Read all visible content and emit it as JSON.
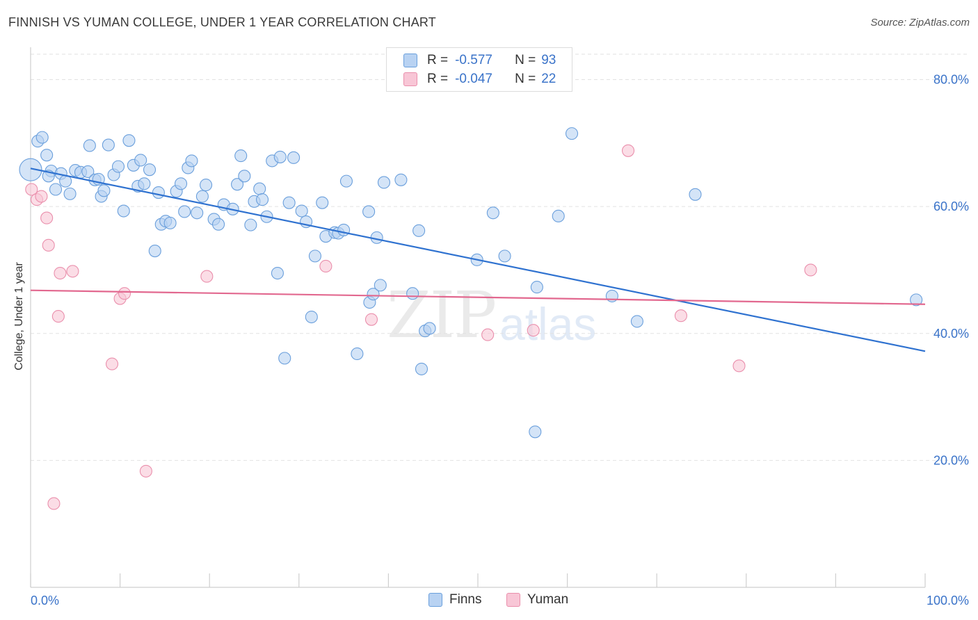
{
  "header": {
    "title": "FINNISH VS YUMAN COLLEGE, UNDER 1 YEAR CORRELATION CHART",
    "source": "Source: ZipAtlas.com"
  },
  "legend": {
    "finns": {
      "r_label": "R =",
      "r_value": "-0.577",
      "n_label": "N =",
      "n_value": "93"
    },
    "yuman": {
      "r_label": "R =",
      "r_value": "-0.047",
      "n_label": "N =",
      "n_value": "22"
    }
  },
  "bottom_legend": {
    "finns": "Finns",
    "yuman": "Yuman"
  },
  "watermark": {
    "zip": "ZIP",
    "atlas": "atlas"
  },
  "colors": {
    "finns_fill": "#b8d2f2",
    "finns_stroke": "#6a9fdc",
    "finns_line": "#2f72d0",
    "yuman_fill": "#f8c6d6",
    "yuman_stroke": "#ea8fac",
    "yuman_line": "#e2688f",
    "axis_label": "#3a73c9",
    "grid": "#e2e2e2"
  },
  "chart_data": {
    "type": "scatter",
    "title": "FINNISH VS YUMAN COLLEGE, UNDER 1 YEAR CORRELATION CHART",
    "xlabel": "",
    "ylabel": "College, Under 1 year",
    "xlim": [
      0,
      100
    ],
    "ylim": [
      0,
      84
    ],
    "x_ticks": [
      "0.0%",
      "100.0%"
    ],
    "y_ticks": [
      {
        "value": 80,
        "label": "80.0%"
      },
      {
        "value": 60,
        "label": "60.0%"
      },
      {
        "value": 40,
        "label": "40.0%"
      },
      {
        "value": 20,
        "label": "20.0%"
      }
    ],
    "grid": true,
    "legend_position": "top-center",
    "series": [
      {
        "name": "Finns",
        "r": -0.577,
        "n": 93,
        "trend": {
          "x": [
            0,
            100
          ],
          "y": [
            66.0,
            37.2
          ]
        },
        "points": [
          [
            0.0,
            65.8
          ],
          [
            0.8,
            70.3
          ],
          [
            1.3,
            70.9
          ],
          [
            1.8,
            68.1
          ],
          [
            2.3,
            65.6
          ],
          [
            2.8,
            62.7
          ],
          [
            3.4,
            65.2
          ],
          [
            3.9,
            64.0
          ],
          [
            4.4,
            62.0
          ],
          [
            5.0,
            65.7
          ],
          [
            5.6,
            65.4
          ],
          [
            6.4,
            65.5
          ],
          [
            6.6,
            69.6
          ],
          [
            7.2,
            64.2
          ],
          [
            7.6,
            64.3
          ],
          [
            7.9,
            61.6
          ],
          [
            8.2,
            62.5
          ],
          [
            8.7,
            69.7
          ],
          [
            9.3,
            65.0
          ],
          [
            9.8,
            66.3
          ],
          [
            10.4,
            59.3
          ],
          [
            11.0,
            70.4
          ],
          [
            11.5,
            66.5
          ],
          [
            12.0,
            63.2
          ],
          [
            12.3,
            67.3
          ],
          [
            12.7,
            63.6
          ],
          [
            13.3,
            65.8
          ],
          [
            13.9,
            53.0
          ],
          [
            14.3,
            62.2
          ],
          [
            14.6,
            57.2
          ],
          [
            15.1,
            57.7
          ],
          [
            15.6,
            57.4
          ],
          [
            16.3,
            62.4
          ],
          [
            16.8,
            63.6
          ],
          [
            17.2,
            59.2
          ],
          [
            17.6,
            66.1
          ],
          [
            18.0,
            67.2
          ],
          [
            18.6,
            59.0
          ],
          [
            19.2,
            61.6
          ],
          [
            19.6,
            63.4
          ],
          [
            20.5,
            58.0
          ],
          [
            21.0,
            57.2
          ],
          [
            21.6,
            60.3
          ],
          [
            22.6,
            59.6
          ],
          [
            23.1,
            63.5
          ],
          [
            23.5,
            68.0
          ],
          [
            23.9,
            64.8
          ],
          [
            24.6,
            57.1
          ],
          [
            25.0,
            60.8
          ],
          [
            25.6,
            62.8
          ],
          [
            25.9,
            61.1
          ],
          [
            26.4,
            58.4
          ],
          [
            27.0,
            67.2
          ],
          [
            27.6,
            49.5
          ],
          [
            27.9,
            67.8
          ],
          [
            28.4,
            36.1
          ],
          [
            28.9,
            60.6
          ],
          [
            29.4,
            67.7
          ],
          [
            30.3,
            59.3
          ],
          [
            30.8,
            57.6
          ],
          [
            31.4,
            42.6
          ],
          [
            31.8,
            52.2
          ],
          [
            32.6,
            60.6
          ],
          [
            33.0,
            55.3
          ],
          [
            34.0,
            55.9
          ],
          [
            34.4,
            55.8
          ],
          [
            35.0,
            56.3
          ],
          [
            35.3,
            64.0
          ],
          [
            36.5,
            36.8
          ],
          [
            37.8,
            59.2
          ],
          [
            37.9,
            44.9
          ],
          [
            38.3,
            46.2
          ],
          [
            38.7,
            55.1
          ],
          [
            39.1,
            47.6
          ],
          [
            39.5,
            63.8
          ],
          [
            41.4,
            64.2
          ],
          [
            42.7,
            46.3
          ],
          [
            43.4,
            56.2
          ],
          [
            43.7,
            34.4
          ],
          [
            44.1,
            40.4
          ],
          [
            44.6,
            40.8
          ],
          [
            49.9,
            51.6
          ],
          [
            51.7,
            59.0
          ],
          [
            53.0,
            52.2
          ],
          [
            56.4,
            24.5
          ],
          [
            56.6,
            47.3
          ],
          [
            59.0,
            58.5
          ],
          [
            60.5,
            71.5
          ],
          [
            65.0,
            45.9
          ],
          [
            67.8,
            41.9
          ],
          [
            74.3,
            61.9
          ],
          [
            99.0,
            45.3
          ],
          [
            2.0,
            64.8
          ]
        ]
      },
      {
        "name": "Yuman",
        "r": -0.047,
        "n": 22,
        "trend": {
          "x": [
            0,
            100
          ],
          "y": [
            46.8,
            44.6
          ]
        },
        "points": [
          [
            0.1,
            62.7
          ],
          [
            0.7,
            61.1
          ],
          [
            1.2,
            61.6
          ],
          [
            1.8,
            58.2
          ],
          [
            2.0,
            53.9
          ],
          [
            2.6,
            13.2
          ],
          [
            3.1,
            42.7
          ],
          [
            3.3,
            49.5
          ],
          [
            4.7,
            49.8
          ],
          [
            9.1,
            35.2
          ],
          [
            10.0,
            45.5
          ],
          [
            10.5,
            46.3
          ],
          [
            12.9,
            18.3
          ],
          [
            19.7,
            49.0
          ],
          [
            33.0,
            50.6
          ],
          [
            38.1,
            42.2
          ],
          [
            51.1,
            39.8
          ],
          [
            56.2,
            40.5
          ],
          [
            66.8,
            68.8
          ],
          [
            72.7,
            42.8
          ],
          [
            79.2,
            34.9
          ],
          [
            87.2,
            50.0
          ]
        ]
      }
    ]
  }
}
